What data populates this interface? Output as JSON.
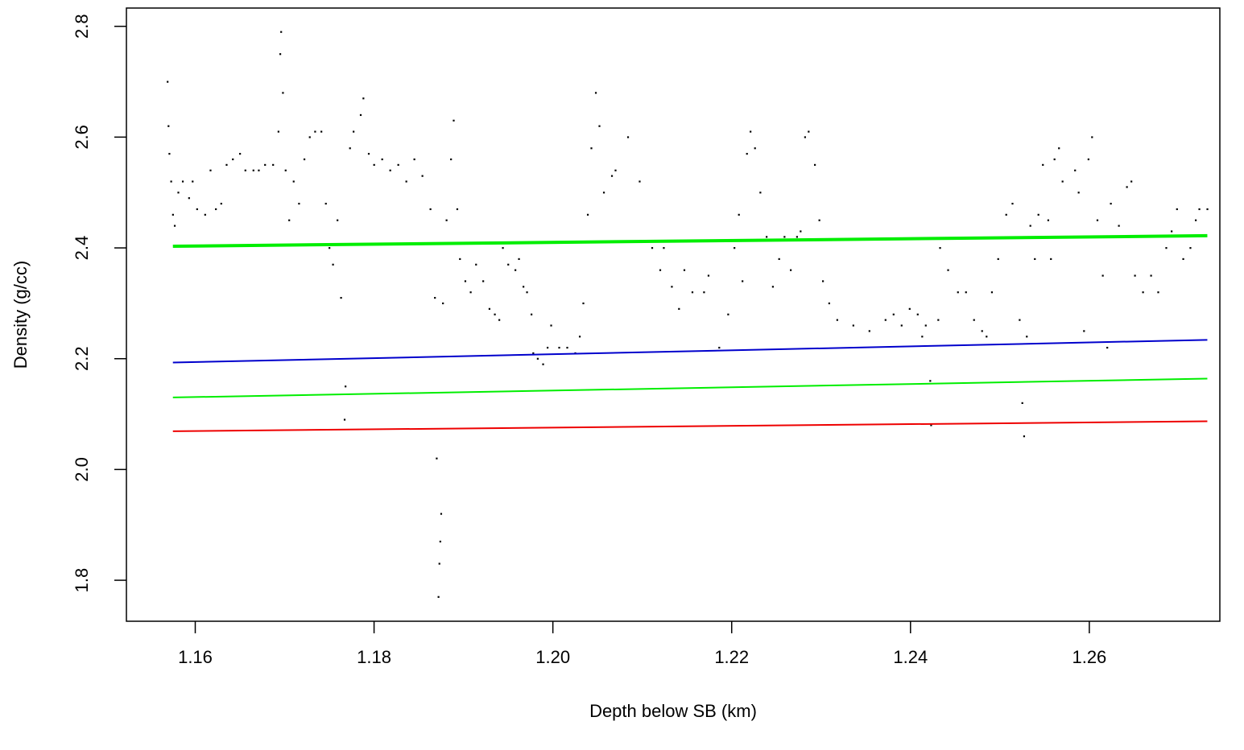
{
  "chart_data": {
    "type": "scatter",
    "x_label": "Depth below SB (km)",
    "y_label": "Density (g/cc)",
    "xlim": [
      1.1523,
      1.2746
    ],
    "ylim": [
      1.726,
      2.833
    ],
    "xticks": [
      1.16,
      1.18,
      {
        "value": 1.2,
        "label": "1.20"
      },
      1.22,
      1.24,
      1.26
    ],
    "yticks": [
      1.8,
      {
        "value": 2,
        "label": "2.0"
      },
      2.2,
      2.4,
      2.6,
      2.8
    ],
    "series": [
      {
        "type": "scatter",
        "color": "#000000",
        "x": [
          1.1569,
          1.157,
          1.1571,
          1.1573,
          1.1575,
          1.1577,
          1.1581,
          1.1586,
          1.1593,
          1.1597,
          1.1602,
          1.1611,
          1.1617,
          1.1623,
          1.1629,
          1.1635,
          1.1642,
          1.165,
          1.1656,
          1.1665,
          1.1671,
          1.1678,
          1.1687,
          1.1693,
          1.1695,
          1.1696,
          1.1698,
          1.1701,
          1.1705,
          1.171,
          1.1716,
          1.1722,
          1.1728,
          1.1734,
          1.1741,
          1.1746,
          1.175,
          1.1754,
          1.1759,
          1.1763,
          1.1767,
          1.1768,
          1.1773,
          1.1777,
          1.1785,
          1.1788,
          1.1794,
          1.18,
          1.1809,
          1.1818,
          1.1827,
          1.1836,
          1.1845,
          1.1854,
          1.1863,
          1.1868,
          1.187,
          1.1872,
          1.1873,
          1.1874,
          1.1875,
          1.1877,
          1.1881,
          1.1886,
          1.1889,
          1.1893,
          1.1896,
          1.1902,
          1.1908,
          1.1914,
          1.1922,
          1.1929,
          1.1935,
          1.194,
          1.1944,
          1.195,
          1.1958,
          1.1962,
          1.1967,
          1.1971,
          1.1976,
          1.1978,
          1.1983,
          1.1989,
          1.1994,
          1.1998,
          1.2007,
          1.2016,
          1.2025,
          1.203,
          1.2034,
          1.2039,
          1.2043,
          1.2048,
          1.2052,
          1.2057,
          1.2066,
          1.207,
          1.2084,
          1.2097,
          1.2111,
          1.212,
          1.2124,
          1.2133,
          1.2141,
          1.2147,
          1.2156,
          1.2169,
          1.2174,
          1.2186,
          1.2196,
          1.2203,
          1.2208,
          1.2212,
          1.2217,
          1.2221,
          1.2226,
          1.2232,
          1.2239,
          1.2246,
          1.2253,
          1.2259,
          1.2266,
          1.2273,
          1.2277,
          1.2282,
          1.2286,
          1.2293,
          1.2298,
          1.2302,
          1.2309,
          1.2318,
          1.2336,
          1.2354,
          1.2372,
          1.2381,
          1.239,
          1.2399,
          1.2408,
          1.2413,
          1.2417,
          1.2422,
          1.2423,
          1.2431,
          1.2433,
          1.2442,
          1.2453,
          1.2462,
          1.2471,
          1.248,
          1.2485,
          1.2491,
          1.2498,
          1.2507,
          1.2514,
          1.2522,
          1.2525,
          1.2527,
          1.253,
          1.2534,
          1.2539,
          1.2543,
          1.2548,
          1.2554,
          1.2557,
          1.2561,
          1.2566,
          1.257,
          1.2584,
          1.2588,
          1.2594,
          1.2599,
          1.2603,
          1.2609,
          1.2615,
          1.262,
          1.2624,
          1.2633,
          1.2642,
          1.2647,
          1.2651,
          1.266,
          1.2669,
          1.2677,
          1.2686,
          1.2692,
          1.2698,
          1.2705,
          1.2713,
          1.2719,
          1.2723,
          1.2732
        ],
        "values": [
          2.7,
          2.62,
          2.57,
          2.52,
          2.46,
          2.44,
          2.5,
          2.52,
          2.49,
          2.52,
          2.47,
          2.46,
          2.54,
          2.47,
          2.48,
          2.55,
          2.56,
          2.57,
          2.54,
          2.54,
          2.54,
          2.55,
          2.55,
          2.61,
          2.75,
          2.79,
          2.68,
          2.54,
          2.45,
          2.52,
          2.48,
          2.56,
          2.6,
          2.61,
          2.61,
          2.48,
          2.4,
          2.37,
          2.45,
          2.31,
          2.09,
          2.15,
          2.58,
          2.61,
          2.64,
          2.67,
          2.57,
          2.55,
          2.56,
          2.54,
          2.55,
          2.52,
          2.56,
          2.53,
          2.47,
          2.31,
          2.02,
          1.77,
          1.83,
          1.87,
          1.92,
          2.3,
          2.45,
          2.56,
          2.63,
          2.47,
          2.38,
          2.34,
          2.32,
          2.37,
          2.34,
          2.29,
          2.28,
          2.27,
          2.4,
          2.37,
          2.36,
          2.38,
          2.33,
          2.32,
          2.28,
          2.21,
          2.2,
          2.19,
          2.22,
          2.26,
          2.22,
          2.22,
          2.21,
          2.24,
          2.3,
          2.46,
          2.58,
          2.68,
          2.62,
          2.5,
          2.53,
          2.54,
          2.6,
          2.52,
          2.4,
          2.36,
          2.4,
          2.33,
          2.29,
          2.36,
          2.32,
          2.32,
          2.35,
          2.22,
          2.28,
          2.4,
          2.46,
          2.34,
          2.57,
          2.61,
          2.58,
          2.5,
          2.42,
          2.33,
          2.38,
          2.42,
          2.36,
          2.42,
          2.43,
          2.6,
          2.61,
          2.55,
          2.45,
          2.34,
          2.3,
          2.27,
          2.26,
          2.25,
          2.27,
          2.28,
          2.26,
          2.29,
          2.28,
          2.24,
          2.26,
          2.16,
          2.08,
          2.27,
          2.4,
          2.36,
          2.32,
          2.32,
          2.27,
          2.25,
          2.24,
          2.32,
          2.38,
          2.46,
          2.48,
          2.27,
          2.12,
          2.06,
          2.24,
          2.44,
          2.38,
          2.46,
          2.55,
          2.45,
          2.38,
          2.56,
          2.58,
          2.52,
          2.54,
          2.5,
          2.25,
          2.56,
          2.6,
          2.45,
          2.35,
          2.22,
          2.48,
          2.44,
          2.51,
          2.52,
          2.35,
          2.32,
          2.35,
          2.32,
          2.4,
          2.43,
          2.47,
          2.38,
          2.4,
          2.45,
          2.47,
          2.47
        ]
      },
      {
        "type": "line",
        "color": "#00ee00",
        "linewidth": 4,
        "x": [
          1.1575,
          1.2732
        ],
        "values": [
          2.403,
          2.422
        ]
      },
      {
        "type": "line",
        "color": "#0000cc",
        "linewidth": 2,
        "x": [
          1.1575,
          1.2732
        ],
        "values": [
          2.193,
          2.234
        ]
      },
      {
        "type": "line",
        "color": "#00ee00",
        "linewidth": 2,
        "x": [
          1.1575,
          1.2732
        ],
        "values": [
          2.13,
          2.164
        ]
      },
      {
        "type": "line",
        "color": "#ee0000",
        "linewidth": 2,
        "x": [
          1.1575,
          1.2732
        ],
        "values": [
          2.069,
          2.087
        ]
      }
    ]
  }
}
